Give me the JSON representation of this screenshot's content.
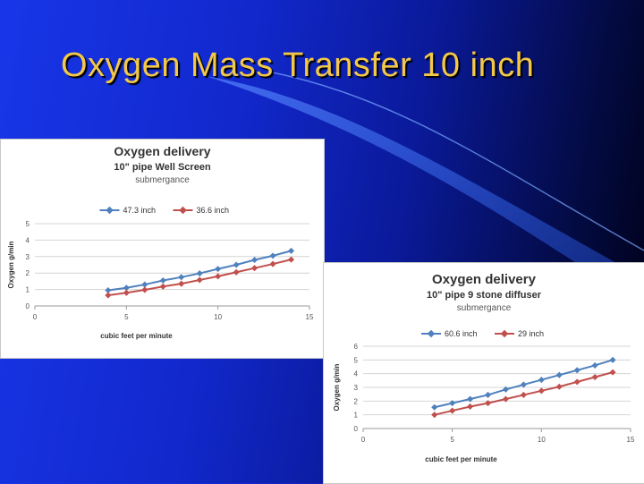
{
  "slide": {
    "title": "Oxygen Mass Transfer 10 inch"
  },
  "colors": {
    "series_blue": "#4f81bd",
    "series_red": "#c0504d",
    "title": "#f2c84a"
  },
  "chart_data": [
    {
      "type": "line",
      "title": "Oxygen delivery",
      "subtitle": "10\" pipe Well Screen",
      "subtitle2": "submergance",
      "xlabel": "cubic feet per minute",
      "ylabel": "Oxygen g/min",
      "xlim": [
        0,
        15
      ],
      "ylim": [
        0,
        5
      ],
      "xticks": [
        0,
        5,
        10,
        15
      ],
      "yticks": [
        0,
        1,
        2,
        3,
        4,
        5
      ],
      "grid": true,
      "legend": "top",
      "x": [
        4,
        5,
        6,
        7,
        8,
        9,
        10,
        11,
        12,
        13,
        14
      ],
      "series": [
        {
          "name": "47.3 inch",
          "values": [
            0.95,
            1.1,
            1.3,
            1.55,
            1.75,
            1.98,
            2.25,
            2.5,
            2.8,
            3.05,
            3.35
          ]
        },
        {
          "name": "36.6 inch",
          "values": [
            0.65,
            0.8,
            0.98,
            1.18,
            1.35,
            1.58,
            1.8,
            2.05,
            2.3,
            2.55,
            2.82
          ]
        }
      ]
    },
    {
      "type": "line",
      "title": "Oxygen delivery",
      "subtitle": "10\" pipe 9 stone diffuser",
      "subtitle2": "submergance",
      "xlabel": "cubic feet per minute",
      "ylabel": "Oxygen g/min",
      "xlim": [
        0,
        15
      ],
      "ylim": [
        0,
        6
      ],
      "xticks": [
        0,
        5,
        10,
        15
      ],
      "yticks": [
        0,
        1,
        2,
        3,
        4,
        5,
        6
      ],
      "grid": true,
      "legend": "top",
      "x": [
        4,
        5,
        6,
        7,
        8,
        9,
        10,
        11,
        12,
        13,
        14
      ],
      "series": [
        {
          "name": "60.6 inch",
          "values": [
            1.55,
            1.85,
            2.15,
            2.45,
            2.85,
            3.2,
            3.55,
            3.9,
            4.25,
            4.6,
            5.0
          ]
        },
        {
          "name": "29 inch",
          "values": [
            1.0,
            1.3,
            1.6,
            1.85,
            2.15,
            2.45,
            2.75,
            3.05,
            3.4,
            3.75,
            4.1
          ]
        }
      ]
    }
  ]
}
